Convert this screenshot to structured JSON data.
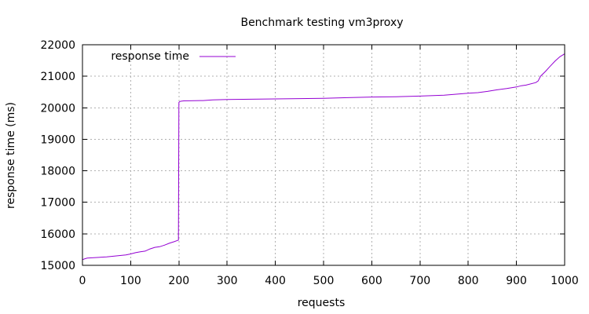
{
  "chart_data": {
    "type": "line",
    "title": "Benchmark testing vm3proxy",
    "xlabel": "requests",
    "ylabel": "response time (ms)",
    "xlim": [
      0,
      1000
    ],
    "ylim": [
      15000,
      22000
    ],
    "x_ticks": [
      "0",
      "100",
      "200",
      "300",
      "400",
      "500",
      "600",
      "700",
      "800",
      "900",
      "1000"
    ],
    "y_ticks": [
      "15000",
      "16000",
      "17000",
      "18000",
      "19000",
      "20000",
      "21000",
      "22000"
    ],
    "grid": true,
    "legend_position": "top-left",
    "series": [
      {
        "name": "response time",
        "color": "#9400d3",
        "x": [
          0,
          5,
          10,
          50,
          90,
          100,
          110,
          120,
          130,
          140,
          150,
          160,
          170,
          180,
          190,
          197,
          199,
          200,
          202,
          205,
          210,
          250,
          270,
          300,
          350,
          400,
          450,
          500,
          550,
          600,
          650,
          700,
          750,
          800,
          820,
          840,
          860,
          880,
          900,
          910,
          920,
          940,
          945,
          950,
          960,
          970,
          980,
          990,
          1000
        ],
        "y": [
          15180,
          15210,
          15230,
          15270,
          15330,
          15360,
          15400,
          15430,
          15450,
          15520,
          15570,
          15590,
          15640,
          15700,
          15750,
          15790,
          15800,
          20170,
          20200,
          20210,
          20220,
          20230,
          20250,
          20260,
          20270,
          20280,
          20290,
          20300,
          20320,
          20340,
          20350,
          20370,
          20400,
          20460,
          20480,
          20520,
          20570,
          20610,
          20660,
          20700,
          20720,
          20800,
          20850,
          21000,
          21150,
          21320,
          21480,
          21620,
          21710
        ]
      }
    ]
  }
}
